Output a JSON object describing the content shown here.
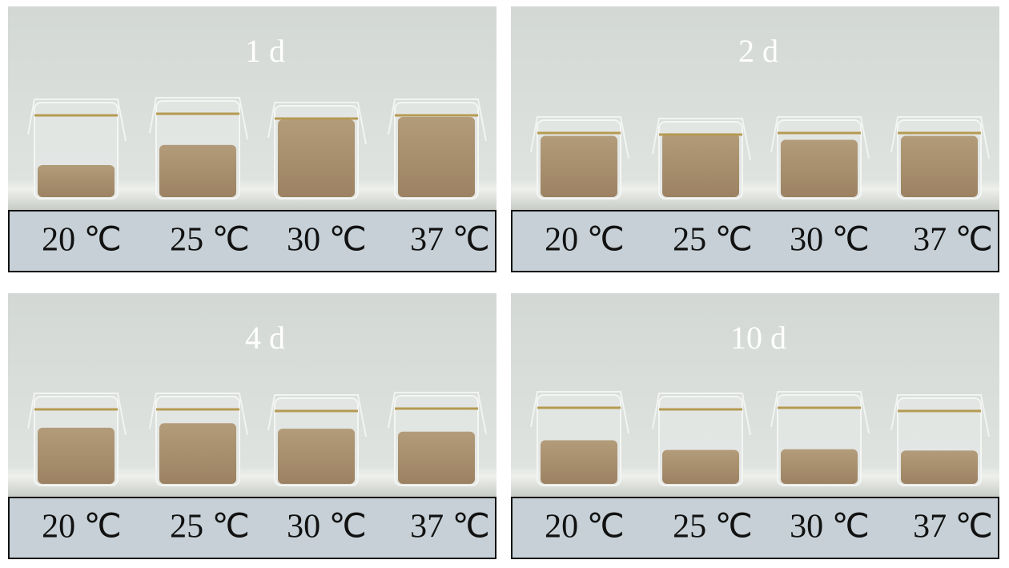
{
  "panels": [
    {
      "title": "1 d",
      "labels": [
        "20 ℃",
        "25 ℃",
        "30 ℃",
        "37 ℃"
      ]
    },
    {
      "title": "2 d",
      "labels": [
        "20 ℃",
        "25 ℃",
        "30 ℃",
        "37 ℃"
      ]
    },
    {
      "title": "4 d",
      "labels": [
        "20 ℃",
        "25 ℃",
        "30 ℃",
        "37 ℃"
      ]
    },
    {
      "title": "10 d",
      "labels": [
        "20 ℃",
        "25 ℃",
        "30 ℃",
        "37 ℃"
      ]
    }
  ]
}
